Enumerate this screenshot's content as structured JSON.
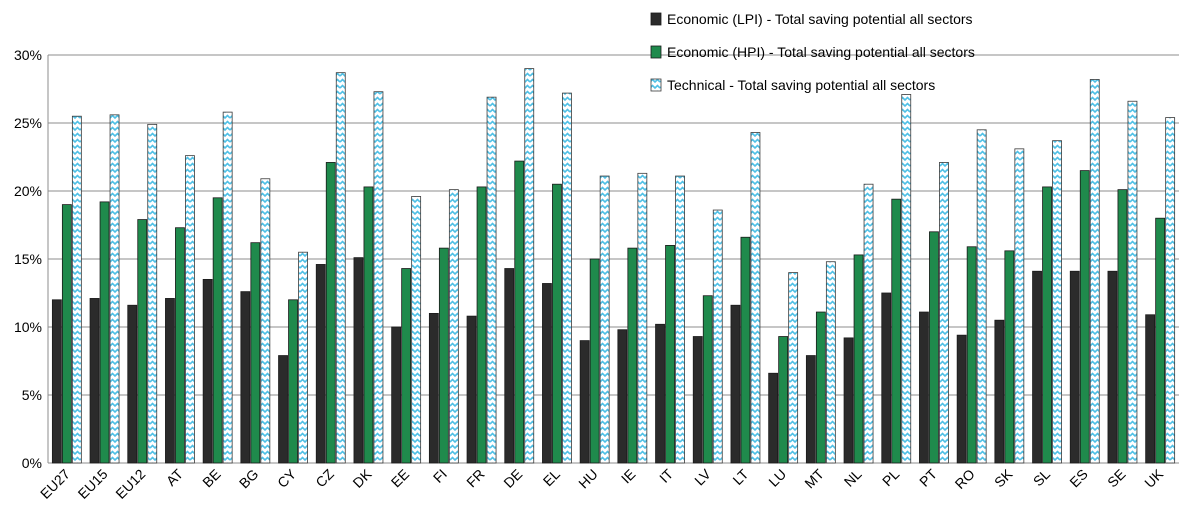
{
  "chart_data": {
    "type": "bar",
    "title": "",
    "xlabel": "",
    "ylabel": "",
    "ylim": [
      0,
      0.3
    ],
    "yticks": [
      0,
      0.05,
      0.1,
      0.15,
      0.2,
      0.25,
      0.3
    ],
    "ytick_labels": [
      "0%",
      "5%",
      "10%",
      "15%",
      "20%",
      "25%",
      "30%"
    ],
    "grid": "horizontal",
    "legend_position": "top-right",
    "categories": [
      "EU27",
      "EU15",
      "EU12",
      "AT",
      "BE",
      "BG",
      "CY",
      "CZ",
      "DK",
      "EE",
      "FI",
      "FR",
      "DE",
      "EL",
      "HU",
      "IE",
      "IT",
      "LV",
      "LT",
      "LU",
      "MT",
      "NL",
      "PL",
      "PT",
      "RO",
      "SK",
      "SL",
      "ES",
      "SE",
      "UK"
    ],
    "series": [
      {
        "name": "Economic (LPI) - Total saving potential all sectors",
        "color": "#2b2b2b",
        "pattern": "solid",
        "values": [
          0.12,
          0.121,
          0.116,
          0.121,
          0.135,
          0.126,
          0.079,
          0.146,
          0.151,
          0.1,
          0.11,
          0.108,
          0.143,
          0.132,
          0.09,
          0.098,
          0.102,
          0.093,
          0.116,
          0.066,
          0.079,
          0.092,
          0.125,
          0.111,
          0.094,
          0.105,
          0.141,
          0.141,
          0.141,
          0.109
        ]
      },
      {
        "name": "Economic (HPI) - Total saving potential all sectors",
        "color": "#1f8a4c",
        "pattern": "solid",
        "values": [
          0.19,
          0.192,
          0.179,
          0.173,
          0.195,
          0.162,
          0.12,
          0.221,
          0.203,
          0.143,
          0.158,
          0.203,
          0.222,
          0.205,
          0.15,
          0.158,
          0.16,
          0.123,
          0.166,
          0.093,
          0.111,
          0.153,
          0.194,
          0.17,
          0.159,
          0.156,
          0.203,
          0.215,
          0.201,
          0.18
        ]
      },
      {
        "name": "Technical - Total saving potential all sectors",
        "color": "#4fc0e6",
        "pattern": "zigzag",
        "values": [
          0.255,
          0.256,
          0.249,
          0.226,
          0.258,
          0.209,
          0.155,
          0.287,
          0.273,
          0.196,
          0.201,
          0.269,
          0.29,
          0.272,
          0.211,
          0.213,
          0.211,
          0.186,
          0.243,
          0.14,
          0.148,
          0.205,
          0.271,
          0.221,
          0.245,
          0.231,
          0.237,
          0.282,
          0.266,
          0.254
        ]
      }
    ]
  }
}
